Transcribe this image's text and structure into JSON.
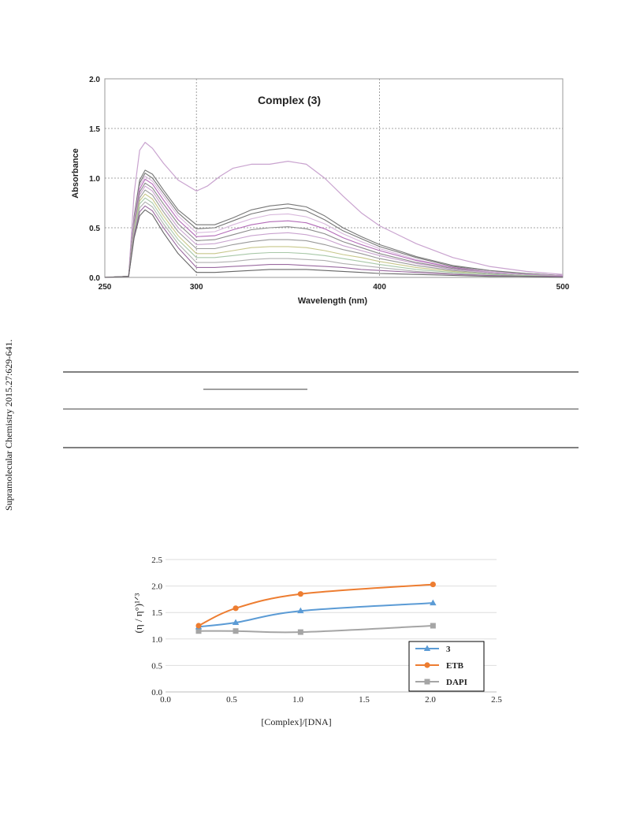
{
  "side_note": "Supramolecular Chemistry 2015.27:629-641.",
  "chart_data": [
    {
      "type": "line",
      "title": "Complex (3)",
      "xlabel": "Wavelength (nm)",
      "ylabel": "Absorbance",
      "xlim": [
        250,
        500
      ],
      "ylim": [
        0.0,
        2.0
      ],
      "x_ticks": [
        "250",
        "300",
        "400",
        "500"
      ],
      "y_ticks": [
        "0.0",
        "0.5",
        "1.0",
        "1.5",
        "2.0"
      ],
      "grid": "dotted",
      "series": [
        {
          "color": "#c9a3cf",
          "x": [
            250,
            263,
            266,
            269,
            272,
            276,
            282,
            290,
            300,
            306,
            313,
            320,
            330,
            340,
            350,
            360,
            370,
            380,
            390,
            400,
            420,
            440,
            460,
            480,
            500
          ],
          "y": [
            0.0,
            0.01,
            0.85,
            1.28,
            1.36,
            1.3,
            1.15,
            0.98,
            0.87,
            0.92,
            1.02,
            1.1,
            1.14,
            1.14,
            1.17,
            1.14,
            1.0,
            0.82,
            0.65,
            0.52,
            0.34,
            0.2,
            0.11,
            0.06,
            0.03
          ]
        },
        {
          "color": "#777777",
          "x": [
            250,
            263,
            266,
            269,
            272,
            276,
            282,
            290,
            300,
            310,
            320,
            330,
            340,
            350,
            360,
            370,
            380,
            390,
            400,
            420,
            440,
            460,
            480,
            500
          ],
          "y": [
            0.0,
            0.01,
            0.62,
            0.98,
            1.08,
            1.04,
            0.88,
            0.68,
            0.53,
            0.53,
            0.6,
            0.68,
            0.72,
            0.74,
            0.71,
            0.62,
            0.5,
            0.41,
            0.33,
            0.21,
            0.12,
            0.07,
            0.04,
            0.02
          ]
        },
        {
          "color": "#777777",
          "x": [
            250,
            263,
            266,
            269,
            272,
            276,
            282,
            290,
            300,
            310,
            320,
            330,
            340,
            350,
            360,
            370,
            380,
            390,
            400,
            420,
            440,
            460,
            480,
            500
          ],
          "y": [
            0.0,
            0.01,
            0.6,
            0.95,
            1.05,
            1.0,
            0.85,
            0.65,
            0.49,
            0.5,
            0.57,
            0.64,
            0.68,
            0.7,
            0.67,
            0.58,
            0.47,
            0.39,
            0.31,
            0.2,
            0.11,
            0.06,
            0.04,
            0.02
          ]
        },
        {
          "color": "#d8b8dc",
          "x": [
            250,
            263,
            266,
            269,
            272,
            276,
            282,
            290,
            300,
            310,
            320,
            330,
            340,
            350,
            360,
            370,
            380,
            390,
            400,
            420,
            440,
            460,
            480,
            500
          ],
          "y": [
            0.0,
            0.01,
            0.58,
            0.92,
            1.02,
            0.97,
            0.82,
            0.62,
            0.45,
            0.46,
            0.53,
            0.59,
            0.63,
            0.64,
            0.61,
            0.54,
            0.44,
            0.36,
            0.29,
            0.18,
            0.1,
            0.06,
            0.03,
            0.02
          ]
        },
        {
          "color": "#b36bb8",
          "x": [
            250,
            263,
            266,
            269,
            272,
            276,
            282,
            290,
            300,
            310,
            320,
            330,
            340,
            350,
            360,
            370,
            380,
            390,
            400,
            420,
            440,
            460,
            480,
            500
          ],
          "y": [
            0.0,
            0.01,
            0.56,
            0.89,
            0.99,
            0.94,
            0.78,
            0.58,
            0.41,
            0.42,
            0.48,
            0.53,
            0.56,
            0.57,
            0.55,
            0.49,
            0.4,
            0.33,
            0.27,
            0.17,
            0.1,
            0.05,
            0.03,
            0.02
          ]
        },
        {
          "color": "#8a8a8a",
          "x": [
            250,
            263,
            266,
            269,
            272,
            276,
            282,
            290,
            300,
            310,
            320,
            330,
            340,
            350,
            360,
            370,
            380,
            390,
            400,
            420,
            440,
            460,
            480,
            500
          ],
          "y": [
            0.0,
            0.01,
            0.54,
            0.86,
            0.95,
            0.9,
            0.74,
            0.54,
            0.37,
            0.38,
            0.43,
            0.48,
            0.5,
            0.51,
            0.49,
            0.44,
            0.36,
            0.3,
            0.24,
            0.15,
            0.09,
            0.05,
            0.03,
            0.02
          ]
        },
        {
          "color": "#c9a3cf",
          "x": [
            250,
            263,
            266,
            269,
            272,
            276,
            282,
            290,
            300,
            310,
            320,
            330,
            340,
            350,
            360,
            370,
            380,
            390,
            400,
            420,
            440,
            460,
            480,
            500
          ],
          "y": [
            0.0,
            0.01,
            0.52,
            0.83,
            0.92,
            0.87,
            0.7,
            0.5,
            0.33,
            0.34,
            0.38,
            0.42,
            0.44,
            0.45,
            0.43,
            0.39,
            0.32,
            0.27,
            0.22,
            0.14,
            0.08,
            0.05,
            0.03,
            0.02
          ]
        },
        {
          "color": "#999999",
          "x": [
            250,
            263,
            266,
            269,
            272,
            276,
            282,
            290,
            300,
            310,
            320,
            330,
            340,
            350,
            360,
            370,
            380,
            390,
            400,
            420,
            440,
            460,
            480,
            500
          ],
          "y": [
            0.0,
            0.01,
            0.5,
            0.8,
            0.88,
            0.83,
            0.66,
            0.46,
            0.29,
            0.29,
            0.33,
            0.36,
            0.38,
            0.38,
            0.37,
            0.33,
            0.28,
            0.24,
            0.19,
            0.12,
            0.07,
            0.04,
            0.02,
            0.01
          ]
        },
        {
          "color": "#c7c78a",
          "x": [
            250,
            263,
            266,
            269,
            272,
            276,
            282,
            290,
            300,
            310,
            320,
            330,
            340,
            350,
            360,
            370,
            380,
            390,
            400,
            420,
            440,
            460,
            480,
            500
          ],
          "y": [
            0.0,
            0.01,
            0.48,
            0.77,
            0.84,
            0.79,
            0.62,
            0.42,
            0.24,
            0.24,
            0.27,
            0.3,
            0.31,
            0.31,
            0.3,
            0.27,
            0.23,
            0.2,
            0.16,
            0.1,
            0.06,
            0.03,
            0.02,
            0.01
          ]
        },
        {
          "color": "#a8c8a8",
          "x": [
            250,
            263,
            266,
            269,
            272,
            276,
            282,
            290,
            300,
            310,
            320,
            330,
            340,
            350,
            360,
            370,
            380,
            390,
            400,
            420,
            440,
            460,
            480,
            500
          ],
          "y": [
            0.0,
            0.01,
            0.46,
            0.74,
            0.8,
            0.75,
            0.58,
            0.38,
            0.2,
            0.2,
            0.22,
            0.24,
            0.25,
            0.25,
            0.24,
            0.22,
            0.19,
            0.16,
            0.13,
            0.08,
            0.05,
            0.03,
            0.02,
            0.01
          ]
        },
        {
          "color": "#b0b0b0",
          "x": [
            250,
            263,
            266,
            269,
            272,
            276,
            282,
            290,
            300,
            310,
            320,
            330,
            340,
            350,
            360,
            370,
            380,
            390,
            400,
            420,
            440,
            460,
            480,
            500
          ],
          "y": [
            0.0,
            0.01,
            0.44,
            0.7,
            0.76,
            0.71,
            0.54,
            0.34,
            0.15,
            0.15,
            0.16,
            0.18,
            0.19,
            0.19,
            0.18,
            0.17,
            0.14,
            0.12,
            0.1,
            0.06,
            0.04,
            0.02,
            0.01,
            0.01
          ]
        },
        {
          "color": "#9a6aa0",
          "x": [
            250,
            263,
            266,
            269,
            272,
            276,
            282,
            290,
            300,
            310,
            320,
            330,
            340,
            350,
            360,
            370,
            380,
            390,
            400,
            420,
            440,
            460,
            480,
            500
          ],
          "y": [
            0.0,
            0.01,
            0.42,
            0.66,
            0.72,
            0.67,
            0.5,
            0.3,
            0.1,
            0.1,
            0.11,
            0.12,
            0.13,
            0.13,
            0.12,
            0.11,
            0.1,
            0.08,
            0.07,
            0.05,
            0.03,
            0.02,
            0.01,
            0.01
          ]
        },
        {
          "color": "#666666",
          "x": [
            250,
            263,
            266,
            269,
            272,
            276,
            282,
            290,
            300,
            310,
            320,
            330,
            340,
            350,
            360,
            370,
            380,
            390,
            400,
            420,
            440,
            460,
            480,
            500
          ],
          "y": [
            0.0,
            0.01,
            0.4,
            0.62,
            0.68,
            0.63,
            0.45,
            0.24,
            0.05,
            0.05,
            0.06,
            0.07,
            0.08,
            0.08,
            0.08,
            0.07,
            0.06,
            0.05,
            0.04,
            0.03,
            0.02,
            0.01,
            0.01,
            0.0
          ]
        }
      ]
    },
    {
      "type": "line",
      "xlabel": "[Complex]/[DNA]",
      "ylabel": "(η / η°)¹ᐟ³",
      "xlim": [
        0.0,
        2.5
      ],
      "ylim": [
        0.0,
        2.5
      ],
      "x_ticks": [
        "0.0",
        "0.5",
        "1.0",
        "1.5",
        "2.0",
        "2.5"
      ],
      "y_ticks": [
        "0.0",
        "0.5",
        "1.0",
        "1.5",
        "2.0",
        "2.5"
      ],
      "grid": "horizontal",
      "legend": "bottom-right",
      "series": [
        {
          "name": "3",
          "color": "#5b9bd5",
          "marker": "triangle",
          "x": [
            0.25,
            0.53,
            1.02,
            2.02
          ],
          "y": [
            1.23,
            1.31,
            1.53,
            1.68
          ]
        },
        {
          "name": "ETB",
          "color": "#ed7d31",
          "marker": "circle",
          "x": [
            0.25,
            0.53,
            1.02,
            2.02
          ],
          "y": [
            1.25,
            1.58,
            1.85,
            2.03
          ]
        },
        {
          "name": "DAPI",
          "color": "#a5a5a5",
          "marker": "square",
          "x": [
            0.25,
            0.53,
            1.02,
            2.02
          ],
          "y": [
            1.15,
            1.15,
            1.13,
            1.25
          ]
        }
      ]
    }
  ]
}
